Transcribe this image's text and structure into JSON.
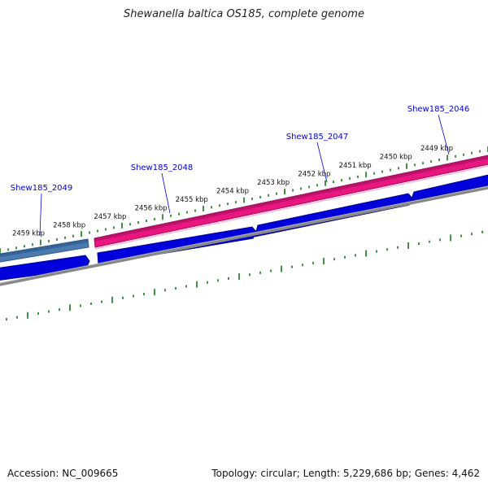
{
  "title": "Shewanella baltica OS185, complete genome",
  "footer": {
    "accession": "Accession: NC_009665",
    "summary": "Topology: circular; Length: 5,229,686 bp; Genes: 4,462"
  },
  "colors": {
    "forward_cds": "#e8167e",
    "forward_cds_alt": "#4a7ab0",
    "reverse_cds": "#0000dd",
    "backbone": "#888888",
    "ticks": "#117711",
    "gene_label": "#0000cc"
  },
  "kbp_labels": [
    {
      "kbp": 2459,
      "text": "2459 kbp"
    },
    {
      "kbp": 2458,
      "text": "2458 kbp"
    },
    {
      "kbp": 2457,
      "text": "2457 kbp"
    },
    {
      "kbp": 2456,
      "text": "2456 kbp"
    },
    {
      "kbp": 2455,
      "text": "2455 kbp"
    },
    {
      "kbp": 2454,
      "text": "2454 kbp"
    },
    {
      "kbp": 2453,
      "text": "2453 kbp"
    },
    {
      "kbp": 2452,
      "text": "2452 kbp"
    },
    {
      "kbp": 2451,
      "text": "2451 kbp"
    },
    {
      "kbp": 2450,
      "text": "2450 kbp"
    },
    {
      "kbp": 2449,
      "text": "2449 kbp"
    }
  ],
  "gene_labels": [
    {
      "name": "Shew185_2049",
      "kbp": 2459.0
    },
    {
      "name": "Shew185_2048",
      "kbp": 2456.0
    },
    {
      "name": "Shew185_2047",
      "kbp": 2451.8
    },
    {
      "name": "Shew185_2046",
      "kbp": 2449.0
    }
  ]
}
